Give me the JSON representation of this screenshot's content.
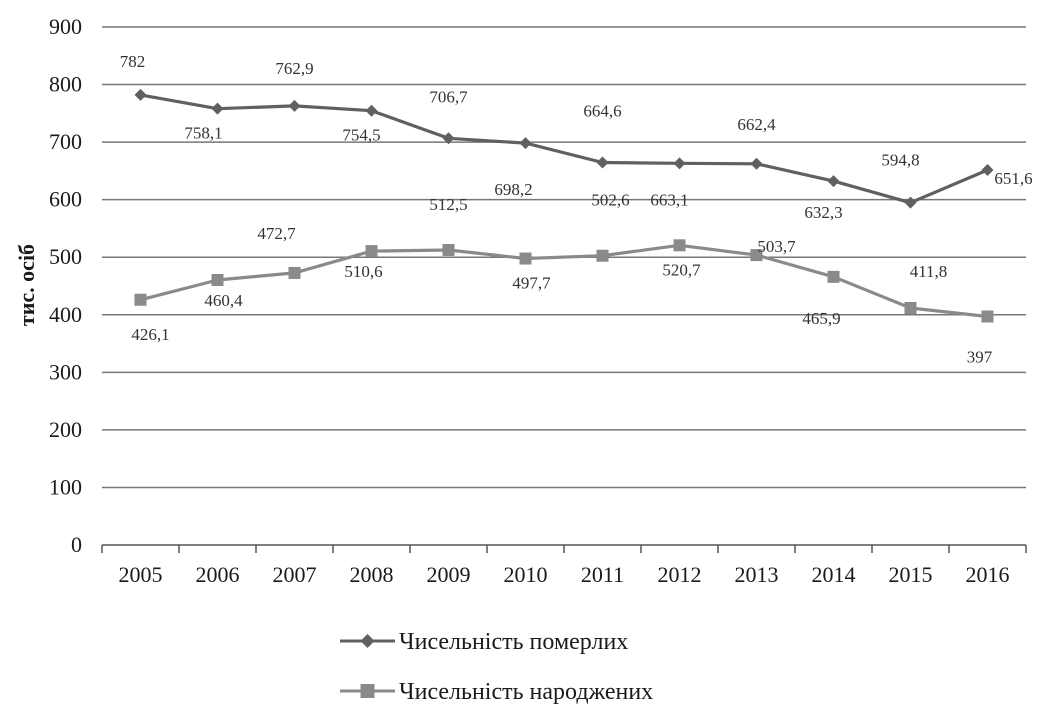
{
  "chart_data": {
    "type": "line",
    "title": "",
    "xlabel": "",
    "ylabel": "тис. осіб",
    "ylim": [
      0,
      900
    ],
    "yticks": [
      0,
      100,
      200,
      300,
      400,
      500,
      600,
      700,
      800,
      900
    ],
    "grid": true,
    "legend_position": "bottom",
    "categories": [
      "2005",
      "2006",
      "2007",
      "2008",
      "2009",
      "2010",
      "2011",
      "2012",
      "2013",
      "2014",
      "2015",
      "2016"
    ],
    "series": [
      {
        "name": "Чисельність померлих",
        "marker": "diamond",
        "color": "#606060",
        "values": [
          782,
          758.1,
          762.9,
          754.5,
          706.7,
          698.2,
          664.6,
          663.1,
          662.4,
          632.3,
          594.8,
          651.6
        ],
        "labels": [
          "782",
          "758,1",
          "762,9",
          "754,5",
          "706,7",
          "698,2",
          "664,6",
          "663,1",
          "662,4",
          "632,3",
          "594,8",
          "651,6"
        ]
      },
      {
        "name": "Чисельність народжених",
        "marker": "square",
        "color": "#8a8a8a",
        "values": [
          426.1,
          460.4,
          472.7,
          510.6,
          512.5,
          497.7,
          502.6,
          520.7,
          503.7,
          465.9,
          411.8,
          397
        ],
        "labels": [
          "426,1",
          "460,4",
          "472,7",
          "510,6",
          "512,5",
          "497,7",
          "502,6",
          "520,7",
          "503,7",
          "465,9",
          "411,8",
          "397"
        ]
      }
    ]
  }
}
